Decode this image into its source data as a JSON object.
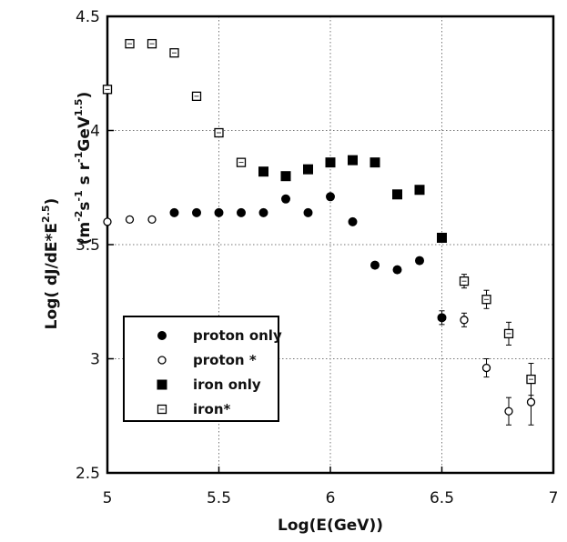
{
  "chart_data": {
    "type": "scatter",
    "title": "",
    "xlabel": "Log(E(GeV))",
    "ylabel_main": "Log(  dJ/dE*E",
    "ylabel_sup": "2.5",
    "ylabel_end": ")",
    "ylabel_units": "(m",
    "ylabel_units_rest": "s",
    "ylabel_units_tail": "GeV",
    "xlim": [
      5,
      7
    ],
    "ylim": [
      2.5,
      4.5
    ],
    "x_ticks": [
      "5",
      "5.5",
      "6",
      "6.5",
      "7"
    ],
    "y_ticks": [
      "2.5",
      "3",
      "3.5",
      "4",
      "4.5"
    ],
    "grid": true,
    "legend_position": "lower-left",
    "series": [
      {
        "name": "proton  only",
        "marker": "filled-circle",
        "points": [
          {
            "x": 5.3,
            "y": 3.64
          },
          {
            "x": 5.4,
            "y": 3.64
          },
          {
            "x": 5.5,
            "y": 3.64
          },
          {
            "x": 5.6,
            "y": 3.64
          },
          {
            "x": 5.7,
            "y": 3.64
          },
          {
            "x": 5.8,
            "y": 3.7
          },
          {
            "x": 5.9,
            "y": 3.64
          },
          {
            "x": 6.0,
            "y": 3.71
          },
          {
            "x": 6.1,
            "y": 3.6
          },
          {
            "x": 6.2,
            "y": 3.41
          },
          {
            "x": 6.3,
            "y": 3.39
          },
          {
            "x": 6.4,
            "y": 3.43
          },
          {
            "x": 6.5,
            "y": 3.18,
            "err": 0.03
          }
        ]
      },
      {
        "name": "proton  *",
        "marker": "open-circle",
        "points": [
          {
            "x": 5.0,
            "y": 3.6
          },
          {
            "x": 5.1,
            "y": 3.61
          },
          {
            "x": 5.2,
            "y": 3.61
          },
          {
            "x": 6.6,
            "y": 3.17,
            "err": 0.03
          },
          {
            "x": 6.7,
            "y": 2.96,
            "err": 0.04
          },
          {
            "x": 6.8,
            "y": 2.77,
            "err": 0.06
          },
          {
            "x": 6.9,
            "y": 2.81,
            "err": 0.1
          }
        ]
      },
      {
        "name": "iron  only",
        "marker": "filled-square",
        "points": [
          {
            "x": 5.7,
            "y": 3.82
          },
          {
            "x": 5.8,
            "y": 3.8
          },
          {
            "x": 5.9,
            "y": 3.83
          },
          {
            "x": 6.0,
            "y": 3.86
          },
          {
            "x": 6.1,
            "y": 3.87
          },
          {
            "x": 6.2,
            "y": 3.86
          },
          {
            "x": 6.3,
            "y": 3.72
          },
          {
            "x": 6.4,
            "y": 3.74
          },
          {
            "x": 6.5,
            "y": 3.53
          }
        ]
      },
      {
        "name": "iron*",
        "marker": "open-square",
        "points": [
          {
            "x": 5.0,
            "y": 4.18
          },
          {
            "x": 5.1,
            "y": 4.38
          },
          {
            "x": 5.2,
            "y": 4.38
          },
          {
            "x": 5.3,
            "y": 4.34
          },
          {
            "x": 5.4,
            "y": 4.15
          },
          {
            "x": 5.5,
            "y": 3.99
          },
          {
            "x": 5.6,
            "y": 3.86
          },
          {
            "x": 6.6,
            "y": 3.34,
            "err": 0.03
          },
          {
            "x": 6.7,
            "y": 3.26,
            "err": 0.04
          },
          {
            "x": 6.8,
            "y": 3.11,
            "err": 0.05
          },
          {
            "x": 6.9,
            "y": 2.91,
            "err": 0.07
          }
        ]
      }
    ]
  }
}
